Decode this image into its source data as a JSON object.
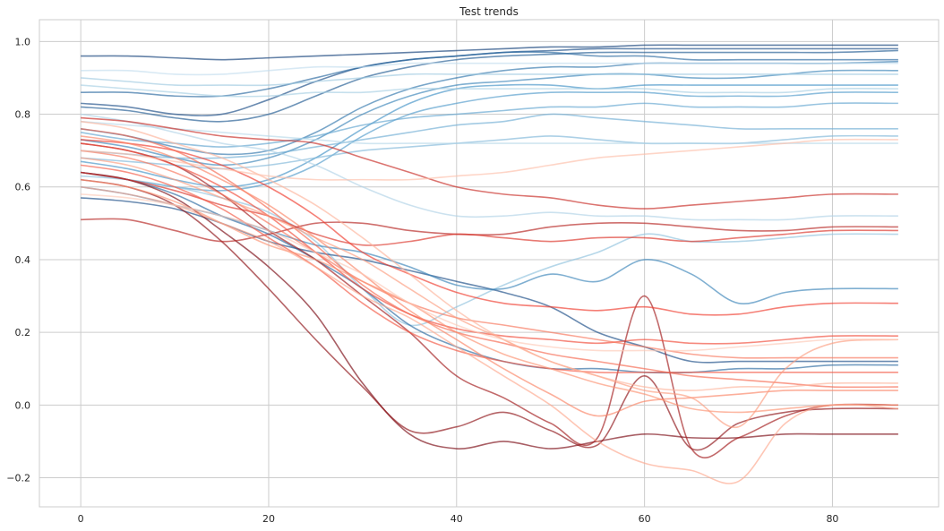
{
  "chart_data": {
    "type": "line",
    "title": "Test trends",
    "xlabel": "",
    "ylabel": "",
    "xlim": [
      -4.4,
      91.3
    ],
    "ylim": [
      -0.28,
      1.06
    ],
    "xticks": [
      0,
      20,
      40,
      60,
      80
    ],
    "xtick_labels": [
      "0",
      "20",
      "40",
      "60",
      "80"
    ],
    "yticks": [
      -0.2,
      0.0,
      0.2,
      0.4,
      0.6,
      0.8,
      1.0
    ],
    "ytick_labels": [
      "−0.2",
      "0.0",
      "0.2",
      "0.4",
      "0.6",
      "0.8",
      "1.0"
    ],
    "grid": true,
    "legend": "none",
    "line_alpha": 0.65,
    "colors": {
      "background": "#ffffff",
      "grid": "#cccccc",
      "spine": "#cccccc",
      "text": "#262626"
    },
    "colormaps": {
      "rising": "Blues",
      "falling": "Reds"
    },
    "x_points": [
      0,
      5,
      10,
      15,
      20,
      25,
      30,
      35,
      40,
      45,
      50,
      55,
      60,
      65,
      70,
      75,
      80,
      87
    ],
    "series": [
      {
        "group": "rising",
        "shade": 0.95,
        "values": [
          0.96,
          0.96,
          0.955,
          0.95,
          0.955,
          0.96,
          0.965,
          0.97,
          0.975,
          0.98,
          0.985,
          0.985,
          0.99,
          0.99,
          0.99,
          0.99,
          0.99,
          0.99
        ]
      },
      {
        "group": "rising",
        "shade": 0.9,
        "values": [
          0.83,
          0.82,
          0.8,
          0.8,
          0.84,
          0.89,
          0.93,
          0.95,
          0.96,
          0.97,
          0.975,
          0.98,
          0.98,
          0.98,
          0.98,
          0.98,
          0.98,
          0.98
        ]
      },
      {
        "group": "rising",
        "shade": 0.85,
        "values": [
          0.82,
          0.81,
          0.79,
          0.78,
          0.8,
          0.85,
          0.9,
          0.93,
          0.95,
          0.96,
          0.965,
          0.97,
          0.97,
          0.97,
          0.97,
          0.97,
          0.97,
          0.975
        ]
      },
      {
        "group": "rising",
        "shade": 0.8,
        "values": [
          0.86,
          0.86,
          0.85,
          0.85,
          0.87,
          0.9,
          0.93,
          0.95,
          0.96,
          0.97,
          0.97,
          0.96,
          0.96,
          0.95,
          0.95,
          0.95,
          0.95,
          0.95
        ]
      },
      {
        "group": "rising",
        "shade": 0.75,
        "values": [
          0.76,
          0.74,
          0.71,
          0.69,
          0.7,
          0.75,
          0.82,
          0.87,
          0.9,
          0.92,
          0.93,
          0.93,
          0.94,
          0.94,
          0.94,
          0.94,
          0.94,
          0.945
        ]
      },
      {
        "group": "rising",
        "shade": 0.7,
        "values": [
          0.73,
          0.71,
          0.68,
          0.66,
          0.68,
          0.73,
          0.8,
          0.85,
          0.88,
          0.89,
          0.9,
          0.91,
          0.91,
          0.9,
          0.9,
          0.91,
          0.92,
          0.92
        ]
      },
      {
        "group": "rising",
        "shade": 0.65,
        "values": [
          0.67,
          0.65,
          0.62,
          0.6,
          0.62,
          0.68,
          0.76,
          0.83,
          0.87,
          0.88,
          0.88,
          0.87,
          0.88,
          0.88,
          0.88,
          0.88,
          0.88,
          0.88
        ]
      },
      {
        "group": "rising",
        "shade": 0.6,
        "values": [
          0.64,
          0.62,
          0.6,
          0.59,
          0.61,
          0.66,
          0.74,
          0.8,
          0.83,
          0.85,
          0.86,
          0.86,
          0.86,
          0.85,
          0.85,
          0.85,
          0.86,
          0.86
        ]
      },
      {
        "group": "rising",
        "shade": 0.55,
        "values": [
          0.75,
          0.73,
          0.72,
          0.71,
          0.72,
          0.74,
          0.77,
          0.79,
          0.8,
          0.81,
          0.82,
          0.82,
          0.83,
          0.82,
          0.82,
          0.82,
          0.83,
          0.83
        ]
      },
      {
        "group": "rising",
        "shade": 0.5,
        "values": [
          0.7,
          0.69,
          0.68,
          0.68,
          0.69,
          0.71,
          0.73,
          0.75,
          0.77,
          0.78,
          0.8,
          0.79,
          0.78,
          0.77,
          0.76,
          0.76,
          0.76,
          0.76
        ]
      },
      {
        "group": "rising",
        "shade": 0.45,
        "values": [
          0.68,
          0.67,
          0.66,
          0.65,
          0.66,
          0.68,
          0.7,
          0.71,
          0.72,
          0.73,
          0.74,
          0.73,
          0.72,
          0.72,
          0.72,
          0.73,
          0.74,
          0.74
        ]
      },
      {
        "group": "rising",
        "shade": 0.4,
        "values": [
          0.63,
          0.62,
          0.6,
          0.57,
          0.53,
          0.45,
          0.32,
          0.22,
          0.27,
          0.33,
          0.38,
          0.42,
          0.47,
          0.45,
          0.45,
          0.46,
          0.47,
          0.47
        ]
      },
      {
        "group": "rising",
        "shade": 0.35,
        "values": [
          0.9,
          0.89,
          0.88,
          0.88,
          0.88,
          0.89,
          0.9,
          0.91,
          0.91,
          0.91,
          0.91,
          0.91,
          0.91,
          0.91,
          0.91,
          0.91,
          0.91,
          0.91
        ]
      },
      {
        "group": "rising",
        "shade": 0.3,
        "values": [
          0.88,
          0.87,
          0.86,
          0.85,
          0.85,
          0.86,
          0.86,
          0.87,
          0.87,
          0.87,
          0.87,
          0.87,
          0.87,
          0.86,
          0.86,
          0.86,
          0.87,
          0.87
        ]
      },
      {
        "group": "rising",
        "shade": 0.25,
        "values": [
          0.8,
          0.78,
          0.75,
          0.72,
          0.7,
          0.66,
          0.6,
          0.55,
          0.52,
          0.52,
          0.53,
          0.52,
          0.52,
          0.51,
          0.51,
          0.51,
          0.52,
          0.52
        ]
      },
      {
        "group": "rising",
        "shade": 0.2,
        "values": [
          0.78,
          0.77,
          0.76,
          0.75,
          0.74,
          0.73,
          0.72,
          0.72,
          0.72,
          0.72,
          0.72,
          0.72,
          0.72,
          0.72,
          0.72,
          0.72,
          0.72,
          0.72
        ]
      },
      {
        "group": "rising",
        "shade": 0.15,
        "values": [
          0.92,
          0.92,
          0.91,
          0.91,
          0.92,
          0.93,
          0.93,
          0.94,
          0.94,
          0.94,
          0.94,
          0.94,
          0.94,
          0.94,
          0.94,
          0.94,
          0.94,
          0.94
        ]
      },
      {
        "group": "rising",
        "shade": 0.9,
        "values": [
          0.57,
          0.56,
          0.54,
          0.5,
          0.45,
          0.42,
          0.4,
          0.37,
          0.34,
          0.31,
          0.27,
          0.2,
          0.16,
          0.12,
          0.12,
          0.12,
          0.12,
          0.12
        ]
      },
      {
        "group": "rising",
        "shade": 0.8,
        "values": [
          0.64,
          0.62,
          0.58,
          0.52,
          0.47,
          0.4,
          0.32,
          0.22,
          0.16,
          0.12,
          0.1,
          0.1,
          0.09,
          0.09,
          0.1,
          0.1,
          0.11,
          0.11
        ]
      },
      {
        "group": "rising",
        "shade": 0.7,
        "values": [
          0.6,
          0.58,
          0.55,
          0.52,
          0.48,
          0.44,
          0.42,
          0.38,
          0.33,
          0.32,
          0.36,
          0.34,
          0.4,
          0.36,
          0.28,
          0.31,
          0.32,
          0.32
        ]
      },
      {
        "group": "falling",
        "shade": 0.95,
        "values": [
          0.64,
          0.62,
          0.57,
          0.48,
          0.38,
          0.25,
          0.06,
          -0.08,
          -0.12,
          -0.1,
          -0.12,
          -0.1,
          -0.08,
          -0.09,
          -0.09,
          -0.08,
          -0.08,
          -0.08
        ]
      },
      {
        "group": "falling",
        "shade": 0.9,
        "values": [
          0.62,
          0.6,
          0.55,
          0.45,
          0.32,
          0.18,
          0.05,
          -0.07,
          -0.06,
          -0.02,
          -0.07,
          -0.11,
          0.08,
          -0.12,
          -0.05,
          -0.02,
          -0.01,
          -0.01
        ]
      },
      {
        "group": "falling",
        "shade": 0.85,
        "values": [
          0.72,
          0.7,
          0.66,
          0.58,
          0.48,
          0.4,
          0.3,
          0.2,
          0.08,
          0.02,
          -0.05,
          -0.09,
          0.3,
          -0.12,
          -0.09,
          -0.03,
          0.0,
          0.0
        ]
      },
      {
        "group": "falling",
        "shade": 0.8,
        "values": [
          0.51,
          0.51,
          0.48,
          0.45,
          0.47,
          0.5,
          0.5,
          0.48,
          0.47,
          0.47,
          0.49,
          0.5,
          0.5,
          0.49,
          0.48,
          0.48,
          0.49,
          0.49
        ]
      },
      {
        "group": "falling",
        "shade": 0.75,
        "values": [
          0.79,
          0.78,
          0.76,
          0.74,
          0.73,
          0.72,
          0.68,
          0.64,
          0.6,
          0.58,
          0.57,
          0.55,
          0.54,
          0.55,
          0.56,
          0.57,
          0.58,
          0.58
        ]
      },
      {
        "group": "falling",
        "shade": 0.7,
        "values": [
          0.64,
          0.62,
          0.59,
          0.55,
          0.52,
          0.47,
          0.44,
          0.45,
          0.47,
          0.46,
          0.45,
          0.46,
          0.46,
          0.45,
          0.46,
          0.47,
          0.48,
          0.48
        ]
      },
      {
        "group": "falling",
        "shade": 0.65,
        "values": [
          0.73,
          0.72,
          0.7,
          0.66,
          0.6,
          0.52,
          0.42,
          0.36,
          0.31,
          0.28,
          0.27,
          0.26,
          0.27,
          0.25,
          0.25,
          0.27,
          0.28,
          0.28
        ]
      },
      {
        "group": "falling",
        "shade": 0.6,
        "values": [
          0.72,
          0.7,
          0.66,
          0.6,
          0.52,
          0.42,
          0.32,
          0.25,
          0.21,
          0.19,
          0.18,
          0.17,
          0.18,
          0.17,
          0.17,
          0.18,
          0.19,
          0.19
        ]
      },
      {
        "group": "falling",
        "shade": 0.55,
        "values": [
          0.66,
          0.64,
          0.6,
          0.54,
          0.46,
          0.38,
          0.28,
          0.2,
          0.15,
          0.12,
          0.1,
          0.09,
          0.09,
          0.09,
          0.09,
          0.09,
          0.09,
          0.09
        ]
      },
      {
        "group": "falling",
        "shade": 0.5,
        "values": [
          0.76,
          0.74,
          0.7,
          0.63,
          0.54,
          0.44,
          0.33,
          0.25,
          0.2,
          0.17,
          0.14,
          0.12,
          0.1,
          0.08,
          0.07,
          0.06,
          0.05,
          0.05
        ]
      },
      {
        "group": "falling",
        "shade": 0.45,
        "values": [
          0.7,
          0.68,
          0.64,
          0.58,
          0.5,
          0.42,
          0.34,
          0.28,
          0.24,
          0.22,
          0.2,
          0.18,
          0.16,
          0.14,
          0.13,
          0.13,
          0.13,
          0.13
        ]
      },
      {
        "group": "falling",
        "shade": 0.4,
        "values": [
          0.74,
          0.72,
          0.68,
          0.62,
          0.55,
          0.46,
          0.36,
          0.26,
          0.18,
          0.1,
          0.03,
          -0.03,
          0.01,
          0.02,
          0.03,
          0.04,
          0.04,
          0.04
        ]
      },
      {
        "group": "falling",
        "shade": 0.35,
        "values": [
          0.62,
          0.6,
          0.56,
          0.5,
          0.44,
          0.4,
          0.34,
          0.28,
          0.2,
          0.14,
          0.1,
          0.06,
          0.03,
          -0.01,
          -0.02,
          -0.01,
          0.0,
          0.0
        ]
      },
      {
        "group": "falling",
        "shade": 0.3,
        "values": [
          0.68,
          0.66,
          0.62,
          0.57,
          0.52,
          0.46,
          0.4,
          0.32,
          0.24,
          0.18,
          0.12,
          0.08,
          0.04,
          0.02,
          -0.06,
          0.1,
          0.17,
          0.18
        ]
      },
      {
        "group": "falling",
        "shade": 0.25,
        "values": [
          0.6,
          0.58,
          0.55,
          0.5,
          0.45,
          0.38,
          0.3,
          0.24,
          0.16,
          0.08,
          0.0,
          -0.1,
          -0.16,
          -0.18,
          -0.21,
          -0.05,
          0.0,
          -0.01
        ]
      },
      {
        "group": "falling",
        "shade": 0.2,
        "values": [
          0.78,
          0.76,
          0.72,
          0.68,
          0.62,
          0.55,
          0.46,
          0.36,
          0.26,
          0.18,
          0.12,
          0.08,
          0.05,
          0.04,
          0.05,
          0.05,
          0.06,
          0.06
        ]
      },
      {
        "group": "falling",
        "shade": 0.15,
        "values": [
          0.7,
          0.69,
          0.67,
          0.65,
          0.63,
          0.62,
          0.62,
          0.62,
          0.63,
          0.64,
          0.66,
          0.68,
          0.69,
          0.7,
          0.71,
          0.72,
          0.73,
          0.73
        ]
      },
      {
        "group": "falling",
        "shade": 0.1,
        "values": [
          0.58,
          0.57,
          0.55,
          0.52,
          0.48,
          0.42,
          0.36,
          0.28,
          0.22,
          0.18,
          0.16,
          0.15,
          0.15,
          0.15,
          0.16,
          0.17,
          0.18,
          0.18
        ]
      }
    ]
  }
}
